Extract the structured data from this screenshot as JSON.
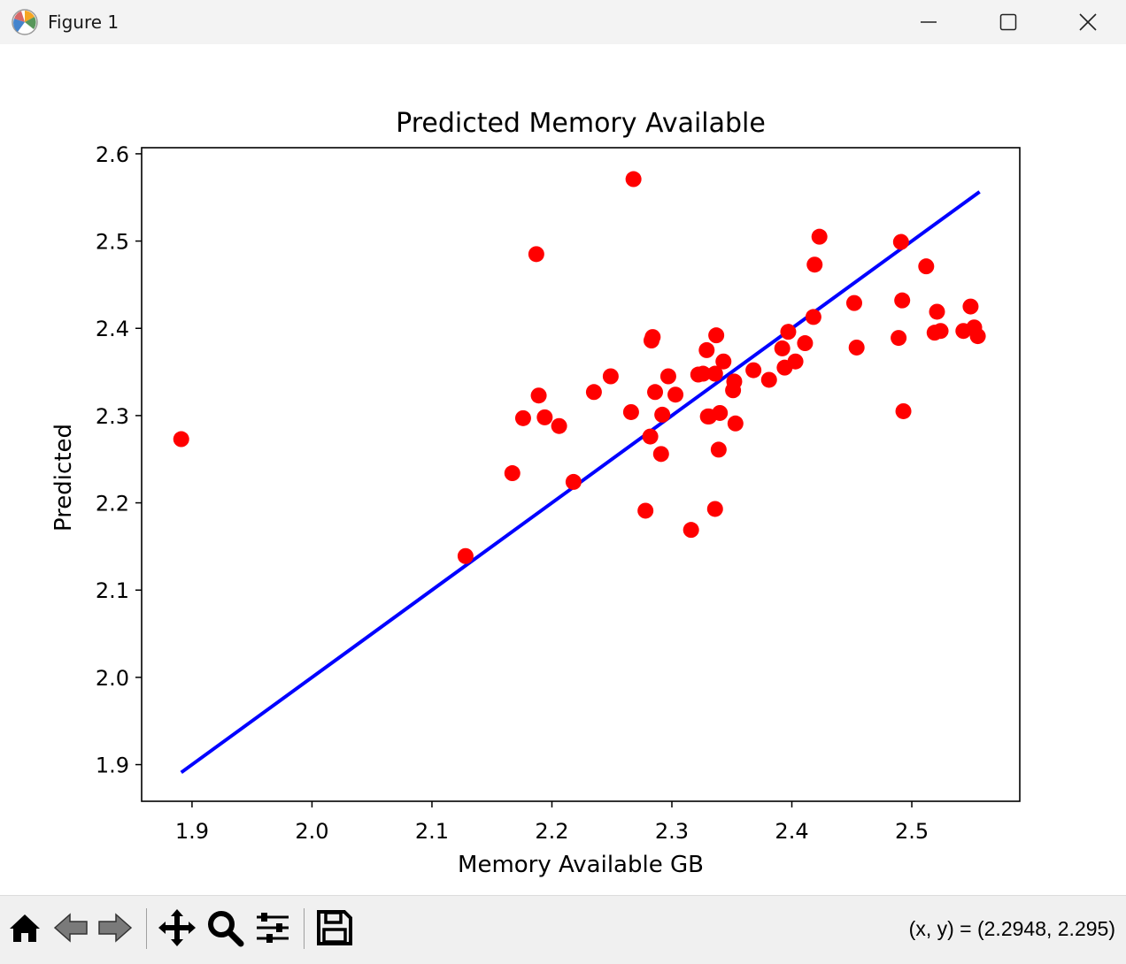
{
  "window": {
    "title": "Figure 1"
  },
  "toolbar": {
    "buttons": [
      {
        "name": "home-icon"
      },
      {
        "name": "back-arrow-icon"
      },
      {
        "name": "forward-arrow-icon"
      },
      {
        "name": "pan-icon"
      },
      {
        "name": "zoom-icon"
      },
      {
        "name": "configure-subplots-icon"
      },
      {
        "name": "save-icon"
      }
    ],
    "coords": "(x, y) = (2.2948, 2.295)"
  },
  "colors": {
    "points": "#ff0000",
    "line": "#0000ff"
  },
  "chart_data": {
    "type": "scatter",
    "title": "Predicted Memory Available",
    "xlabel": "Memory Available GB",
    "ylabel": "Predicted",
    "xlim": [
      1.858,
      2.59
    ],
    "ylim": [
      1.858,
      2.607
    ],
    "xticks": [
      "1.9",
      "2.0",
      "2.1",
      "2.2",
      "2.3",
      "2.4",
      "2.5"
    ],
    "yticks": [
      "1.9",
      "2.0",
      "2.1",
      "2.2",
      "2.3",
      "2.4",
      "2.5",
      "2.6"
    ],
    "grid": false,
    "series": [
      {
        "type": "scatter",
        "color": "#ff0000",
        "x": [
          1.891,
          2.128,
          2.167,
          2.176,
          2.187,
          2.189,
          2.194,
          2.206,
          2.218,
          2.235,
          2.249,
          2.266,
          2.268,
          2.278,
          2.282,
          2.283,
          2.284,
          2.286,
          2.291,
          2.292,
          2.297,
          2.303,
          2.316,
          2.322,
          2.326,
          2.329,
          2.33,
          2.331,
          2.336,
          2.336,
          2.337,
          2.339,
          2.34,
          2.343,
          2.351,
          2.352,
          2.353,
          2.368,
          2.381,
          2.392,
          2.394,
          2.397,
          2.403,
          2.411,
          2.418,
          2.419,
          2.423,
          2.452,
          2.454,
          2.489,
          2.491,
          2.492,
          2.493,
          2.512,
          2.519,
          2.521,
          2.524,
          2.543,
          2.549,
          2.552,
          2.555
        ],
        "y": [
          2.273,
          2.139,
          2.234,
          2.297,
          2.485,
          2.323,
          2.298,
          2.288,
          2.224,
          2.327,
          2.345,
          2.304,
          2.571,
          2.191,
          2.276,
          2.386,
          2.39,
          2.327,
          2.256,
          2.301,
          2.345,
          2.324,
          2.169,
          2.347,
          2.348,
          2.375,
          2.299,
          2.299,
          2.348,
          2.193,
          2.392,
          2.261,
          2.303,
          2.362,
          2.329,
          2.339,
          2.291,
          2.352,
          2.341,
          2.377,
          2.355,
          2.396,
          2.362,
          2.383,
          2.413,
          2.473,
          2.505,
          2.429,
          2.378,
          2.389,
          2.499,
          2.432,
          2.305,
          2.471,
          2.395,
          2.419,
          2.397,
          2.397,
          2.425,
          2.401,
          2.391
        ]
      },
      {
        "type": "line",
        "color": "#0000ff",
        "x": [
          1.891,
          2.5565
        ],
        "y": [
          1.891,
          2.5565
        ]
      }
    ]
  }
}
